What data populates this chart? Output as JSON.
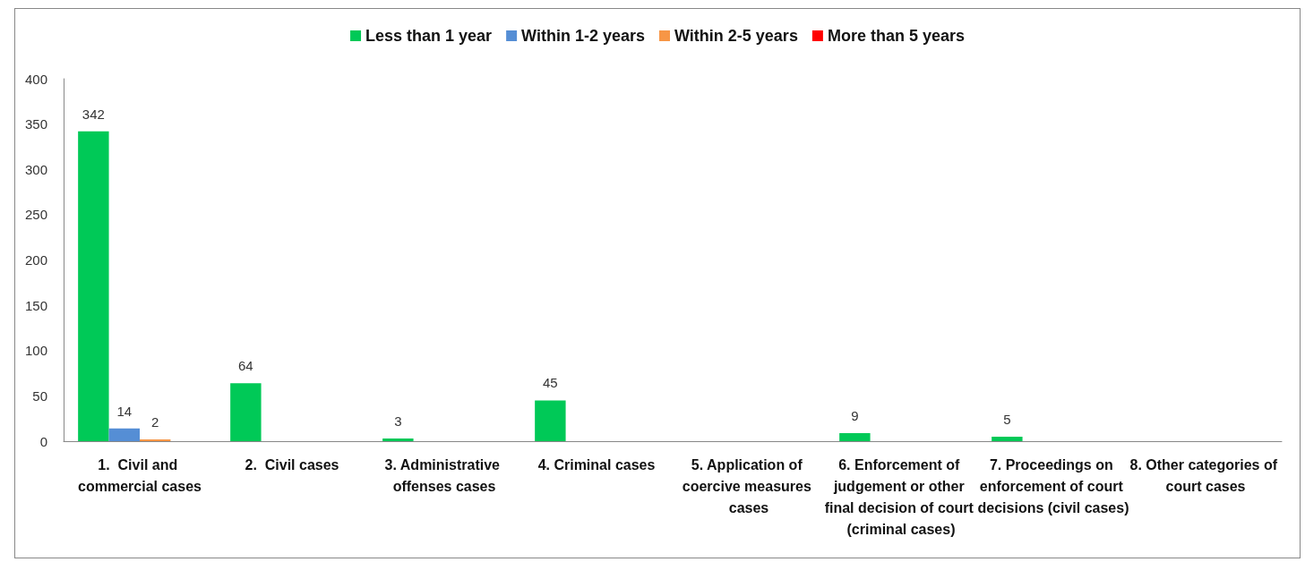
{
  "chart_data": {
    "type": "bar",
    "categories": [
      "1.  Civil and commercial cases",
      "2.  Civil cases",
      "3. Administrative offenses cases",
      "4. Criminal cases",
      "5. Application of coercive measures cases",
      "6. Enforcement of judgement or other final decision of court (criminal cases)",
      "7. Proceedings on enforcement of court decisions (civil cases)",
      "8. Other categories of court cases"
    ],
    "series": [
      {
        "name": "Less than 1 year",
        "color": "#00c957",
        "values": [
          342,
          64,
          3,
          45,
          null,
          9,
          5,
          null
        ]
      },
      {
        "name": "Within 1-2 years",
        "color": "#558ed5",
        "values": [
          14,
          null,
          null,
          null,
          null,
          null,
          null,
          null
        ]
      },
      {
        "name": "Within 2-5 years",
        "color": "#f79646",
        "values": [
          2,
          null,
          null,
          null,
          null,
          null,
          null,
          null
        ]
      },
      {
        "name": "More than 5 years",
        "color": "#ff0000",
        "values": [
          null,
          null,
          null,
          null,
          null,
          null,
          null,
          null
        ]
      }
    ],
    "ylim": [
      0,
      400
    ],
    "yticks": [
      0,
      50,
      100,
      150,
      200,
      250,
      300,
      350,
      400
    ],
    "grid": false,
    "legend": "top",
    "data_labels": true
  }
}
